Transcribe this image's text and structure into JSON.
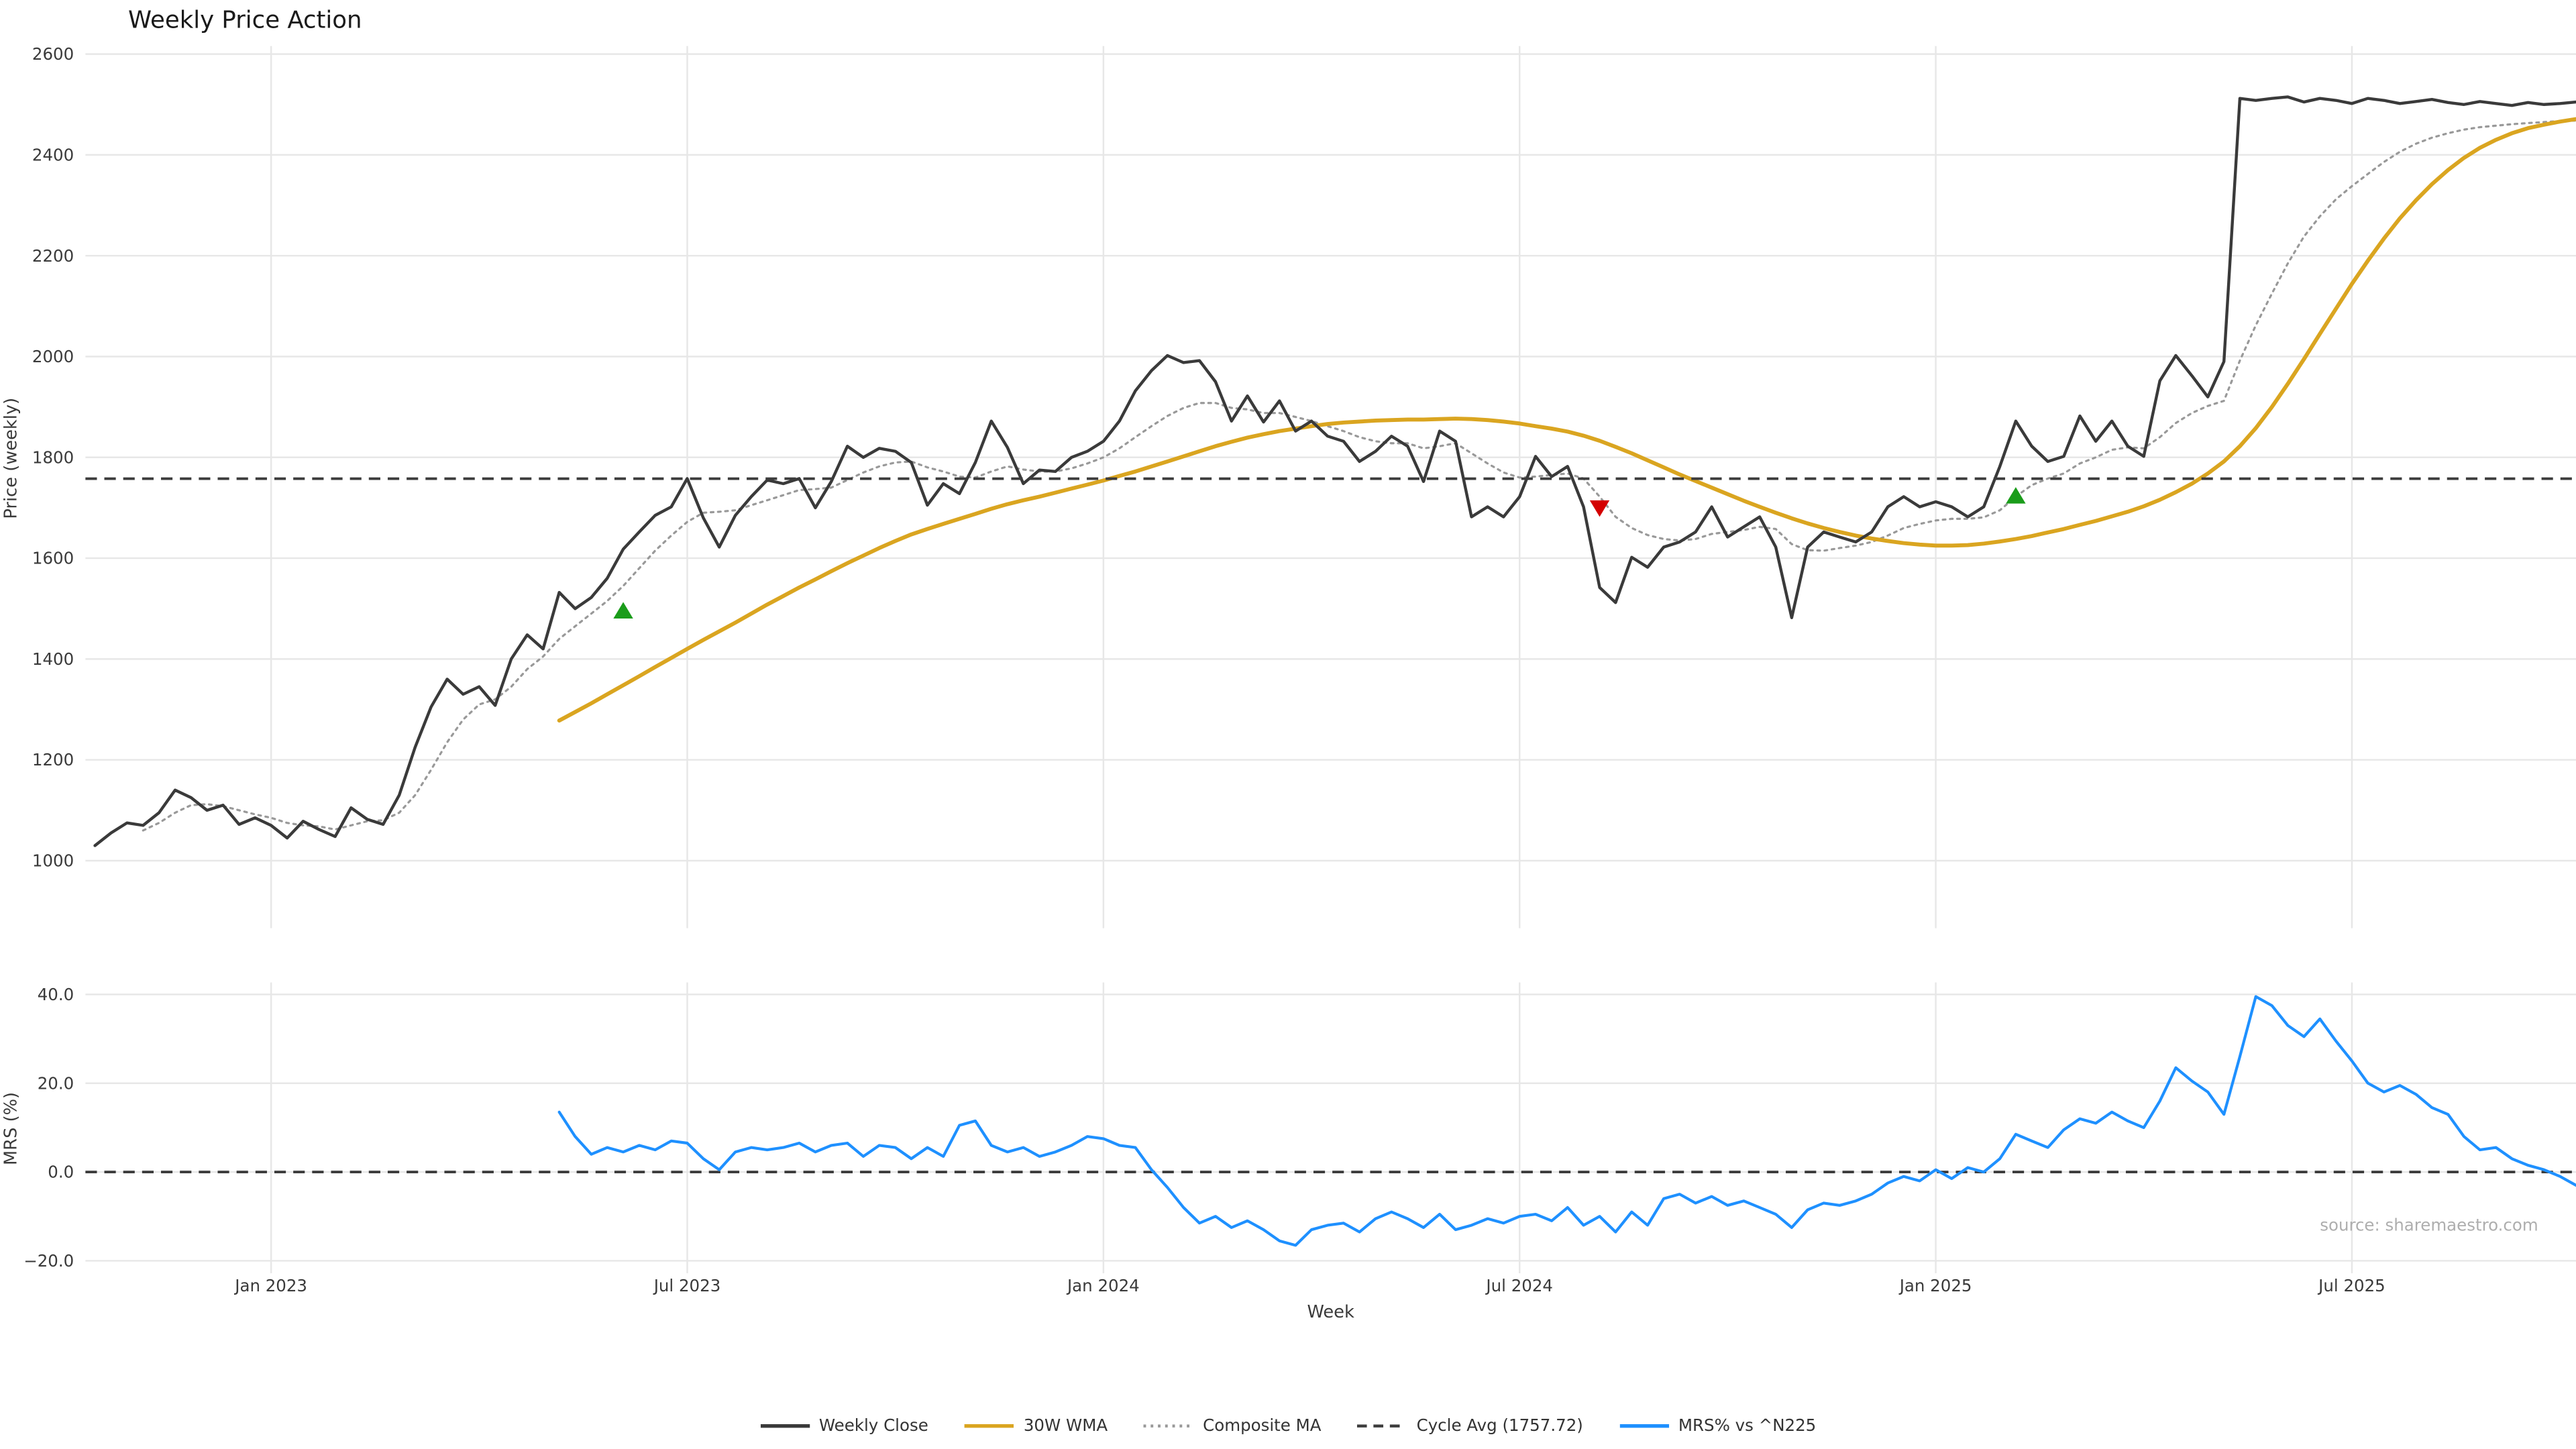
{
  "title": "Weekly Price Action",
  "axes": {
    "price_ylabel": "Price (weekly)",
    "mrs_ylabel": "MRS (%)",
    "xlabel": "Week"
  },
  "source_text": "source: sharemaestro.com",
  "colors": {
    "weekly_close": "#3a3a3a",
    "wma_30w": "#daa520",
    "composite_ma": "#999999",
    "cycle_avg": "#3c3c3c",
    "mrs": "#1e90ff",
    "buy_signal": "#1a9c1a",
    "sell_signal": "#d40000",
    "grid": "#e7e7e7"
  },
  "legend": {
    "items": [
      {
        "label": "Weekly Close",
        "color": "#3a3a3a",
        "style": "solid"
      },
      {
        "label": "30W WMA",
        "color": "#daa520",
        "style": "solid"
      },
      {
        "label": "Composite MA",
        "color": "#999999",
        "style": "dotted"
      },
      {
        "label": "Cycle Avg (1757.72)",
        "color": "#3c3c3c",
        "style": "dashed"
      },
      {
        "label": "MRS% vs ^N225",
        "color": "#1e90ff",
        "style": "solid"
      }
    ]
  },
  "chart_data": [
    {
      "type": "line",
      "title": "Weekly Price Action",
      "ylabel": "Price (weekly)",
      "ylim": [
        866,
        2616
      ],
      "y_ticks": [
        1000,
        1200,
        1400,
        1600,
        1800,
        2000,
        2200,
        2400,
        2600
      ],
      "x_unit": "week_index",
      "xlim_weeks": [
        -0.6,
        155.0
      ],
      "x_ticks": [
        {
          "week": 11,
          "label": "Jan 2023"
        },
        {
          "week": 37,
          "label": "Jul 2023"
        },
        {
          "week": 63,
          "label": "Jan 2024"
        },
        {
          "week": 89,
          "label": "Jul 2024"
        },
        {
          "week": 115,
          "label": "Jan 2025"
        },
        {
          "week": 141,
          "label": "Jul 2025"
        }
      ],
      "grid": true,
      "cycle_avg": 1757.72,
      "series": [
        {
          "id": "weekly-close",
          "name": "Weekly Close",
          "color": "#3a3a3a",
          "dash": "solid",
          "width": 1.8,
          "start_week": 0,
          "values": [
            1030,
            1055,
            1075,
            1070,
            1095,
            1140,
            1125,
            1100,
            1110,
            1072,
            1085,
            1070,
            1045,
            1078,
            1062,
            1048,
            1105,
            1082,
            1072,
            1130,
            1225,
            1305,
            1360,
            1330,
            1345,
            1308,
            1400,
            1448,
            1420,
            1532,
            1500,
            1522,
            1560,
            1618,
            1652,
            1685,
            1702,
            1758,
            1680,
            1622,
            1685,
            1722,
            1755,
            1748,
            1758,
            1700,
            1752,
            1822,
            1800,
            1818,
            1812,
            1790,
            1705,
            1748,
            1728,
            1790,
            1872,
            1820,
            1748,
            1775,
            1772,
            1800,
            1812,
            1832,
            1872,
            1932,
            1972,
            2002,
            1988,
            1992,
            1950,
            1872,
            1922,
            1870,
            1912,
            1852,
            1872,
            1842,
            1832,
            1792,
            1812,
            1842,
            1822,
            1752,
            1852,
            1832,
            1682,
            1702,
            1682,
            1722,
            1802,
            1762,
            1782,
            1702,
            1542,
            1512,
            1602,
            1582,
            1622,
            1632,
            1652,
            1702,
            1642,
            1662,
            1682,
            1622,
            1482,
            1622,
            1652,
            1642,
            1632,
            1652,
            1702,
            1722,
            1702,
            1712,
            1702,
            1682,
            1702,
            1782,
            1872,
            1822,
            1792,
            1802,
            1882,
            1832,
            1872,
            1822,
            1802,
            1952,
            2002,
            1962,
            1920,
            1990,
            2512,
            2508,
            2512,
            2515,
            2505,
            2512,
            2508,
            2502,
            2512,
            2508,
            2502,
            2506,
            2510,
            2504,
            2500,
            2506,
            2502,
            2498,
            2504,
            2500,
            2502,
            2505
          ]
        },
        {
          "id": "wma-30w",
          "name": "30W WMA",
          "color": "#daa520",
          "dash": "solid",
          "width": 2.4,
          "start_week": 29,
          "values": [
            1278,
            1295,
            1312,
            1330,
            1348,
            1366,
            1384,
            1402,
            1420,
            1438,
            1455,
            1472,
            1490,
            1508,
            1525,
            1542,
            1558,
            1574,
            1590,
            1605,
            1620,
            1634,
            1647,
            1658,
            1668,
            1678,
            1688,
            1698,
            1707,
            1715,
            1722,
            1730,
            1738,
            1746,
            1754,
            1763,
            1772,
            1782,
            1792,
            1802,
            1812,
            1822,
            1831,
            1839,
            1846,
            1852,
            1857,
            1862,
            1866,
            1869,
            1871,
            1873,
            1874,
            1875,
            1875,
            1876,
            1877,
            1876,
            1874,
            1871,
            1867,
            1862,
            1857,
            1851,
            1843,
            1833,
            1821,
            1808,
            1794,
            1780,
            1766,
            1753,
            1740,
            1727,
            1714,
            1702,
            1690,
            1679,
            1669,
            1660,
            1652,
            1645,
            1639,
            1634,
            1630,
            1627,
            1625,
            1625,
            1626,
            1629,
            1633,
            1638,
            1644,
            1651,
            1658,
            1666,
            1674,
            1683,
            1692,
            1703,
            1716,
            1731,
            1748,
            1768,
            1792,
            1822,
            1858,
            1900,
            1946,
            1995,
            2045,
            2095,
            2144,
            2190,
            2234,
            2274,
            2310,
            2342,
            2370,
            2394,
            2414,
            2430,
            2443,
            2453,
            2460,
            2466,
            2471
          ]
        },
        {
          "id": "composite-ma",
          "name": "Composite MA",
          "color": "#999999",
          "dash": "dotted",
          "width": 1.3,
          "start_week": 3,
          "values": [
            1060,
            1075,
            1095,
            1110,
            1112,
            1108,
            1100,
            1092,
            1085,
            1075,
            1070,
            1068,
            1062,
            1070,
            1078,
            1080,
            1095,
            1130,
            1180,
            1235,
            1280,
            1310,
            1320,
            1345,
            1380,
            1405,
            1440,
            1465,
            1490,
            1515,
            1545,
            1580,
            1615,
            1645,
            1672,
            1690,
            1692,
            1695,
            1705,
            1715,
            1725,
            1735,
            1737,
            1740,
            1755,
            1770,
            1782,
            1790,
            1792,
            1780,
            1772,
            1762,
            1760,
            1772,
            1782,
            1776,
            1772,
            1772,
            1778,
            1788,
            1800,
            1818,
            1840,
            1862,
            1882,
            1898,
            1908,
            1908,
            1898,
            1895,
            1888,
            1888,
            1880,
            1872,
            1862,
            1852,
            1840,
            1832,
            1828,
            1828,
            1818,
            1822,
            1828,
            1808,
            1788,
            1770,
            1760,
            1762,
            1765,
            1768,
            1758,
            1722,
            1682,
            1660,
            1646,
            1638,
            1635,
            1638,
            1648,
            1652,
            1656,
            1662,
            1658,
            1628,
            1616,
            1615,
            1620,
            1625,
            1632,
            1645,
            1660,
            1668,
            1675,
            1678,
            1678,
            1681,
            1695,
            1722,
            1745,
            1758,
            1768,
            1788,
            1800,
            1815,
            1820,
            1818,
            1840,
            1868,
            1888,
            1902,
            1912,
            1992,
            2062,
            2125,
            2185,
            2238,
            2278,
            2312,
            2338,
            2362,
            2386,
            2406,
            2422,
            2434,
            2443,
            2450,
            2455,
            2458,
            2461,
            2463,
            2465,
            2467,
            2468
          ]
        }
      ],
      "signals": [
        {
          "week": 33,
          "price": 1495,
          "type": "buy",
          "color": "#1a9c1a"
        },
        {
          "week": 94,
          "price": 1700,
          "type": "sell",
          "color": "#d40000"
        },
        {
          "week": 120,
          "price": 1723,
          "type": "buy",
          "color": "#1a9c1a"
        }
      ]
    },
    {
      "type": "line",
      "ylabel": "MRS (%)",
      "ylim": [
        -22.8,
        42.7
      ],
      "y_ticks": [
        -20,
        0,
        20,
        40
      ],
      "zero_line": true,
      "grid": true,
      "series": [
        {
          "id": "mrs",
          "name": "MRS% vs ^N225",
          "color": "#1e90ff",
          "dash": "solid",
          "width": 1.7,
          "start_week": 29,
          "values": [
            13.5,
            8.0,
            4.0,
            5.5,
            4.5,
            6.0,
            5.0,
            7.0,
            6.5,
            3.0,
            0.5,
            4.5,
            5.5,
            5.0,
            5.5,
            6.5,
            4.5,
            6.0,
            6.5,
            3.5,
            6.0,
            5.5,
            3.0,
            5.5,
            3.5,
            10.5,
            11.5,
            6.0,
            4.5,
            5.5,
            3.5,
            4.5,
            6.0,
            8.0,
            7.5,
            6.0,
            5.5,
            0.5,
            -3.5,
            -8.0,
            -11.5,
            -10.0,
            -12.5,
            -11.0,
            -13.0,
            -15.5,
            -16.5,
            -13.0,
            -12.0,
            -11.5,
            -13.5,
            -10.5,
            -9.0,
            -10.5,
            -12.5,
            -9.5,
            -13.0,
            -12.0,
            -10.5,
            -11.5,
            -10.0,
            -9.5,
            -11.0,
            -8.0,
            -12.0,
            -10.0,
            -13.5,
            -9.0,
            -12.0,
            -6.0,
            -5.0,
            -7.0,
            -5.5,
            -7.5,
            -6.5,
            -8.0,
            -9.5,
            -12.5,
            -8.5,
            -7.0,
            -7.5,
            -6.5,
            -5.0,
            -2.5,
            -1.0,
            -2.0,
            0.5,
            -1.5,
            1.0,
            0.0,
            3.0,
            8.5,
            7.0,
            5.5,
            9.5,
            12.0,
            11.0,
            13.5,
            11.5,
            10.0,
            16.0,
            23.5,
            20.5,
            18.0,
            13.0,
            26.0,
            39.5,
            37.5,
            33.0,
            30.5,
            34.5,
            29.5,
            25.0,
            20.0,
            18.0,
            19.5,
            17.5,
            14.5,
            13.0,
            8.0,
            5.0,
            5.5,
            3.0,
            1.5,
            0.5,
            -1.0,
            -3.0
          ]
        }
      ]
    }
  ]
}
